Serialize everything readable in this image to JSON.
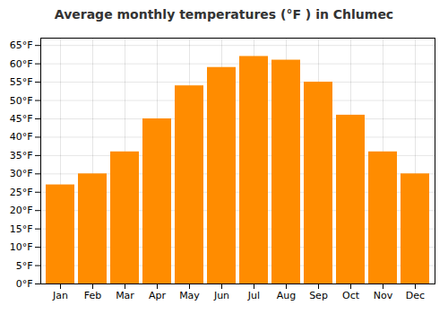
{
  "chart_data": {
    "type": "bar",
    "title": "Average monthly temperatures (°F ) in Chlumec",
    "categories": [
      "Jan",
      "Feb",
      "Mar",
      "Apr",
      "May",
      "Jun",
      "Jul",
      "Aug",
      "Sep",
      "Oct",
      "Nov",
      "Dec"
    ],
    "values": [
      27,
      30,
      36,
      45,
      54,
      59,
      62,
      61,
      55,
      46,
      36,
      30
    ],
    "color": "#FF8C00",
    "ylim": [
      0,
      67
    ],
    "yticks": [
      {
        "value": 0,
        "label": "0°F"
      },
      {
        "value": 5,
        "label": "5°F"
      },
      {
        "value": 10,
        "label": "10°F"
      },
      {
        "value": 15,
        "label": "15°F"
      },
      {
        "value": 20,
        "label": "20°F"
      },
      {
        "value": 25,
        "label": "25°F"
      },
      {
        "value": 30,
        "label": "30°F"
      },
      {
        "value": 35,
        "label": "35°F"
      },
      {
        "value": 40,
        "label": "40°F"
      },
      {
        "value": 45,
        "label": "45°F"
      },
      {
        "value": 50,
        "label": "50°F"
      },
      {
        "value": 55,
        "label": "55°F"
      },
      {
        "value": 60,
        "label": "60°F"
      },
      {
        "value": 65,
        "label": "65°F"
      }
    ],
    "grid": true
  }
}
